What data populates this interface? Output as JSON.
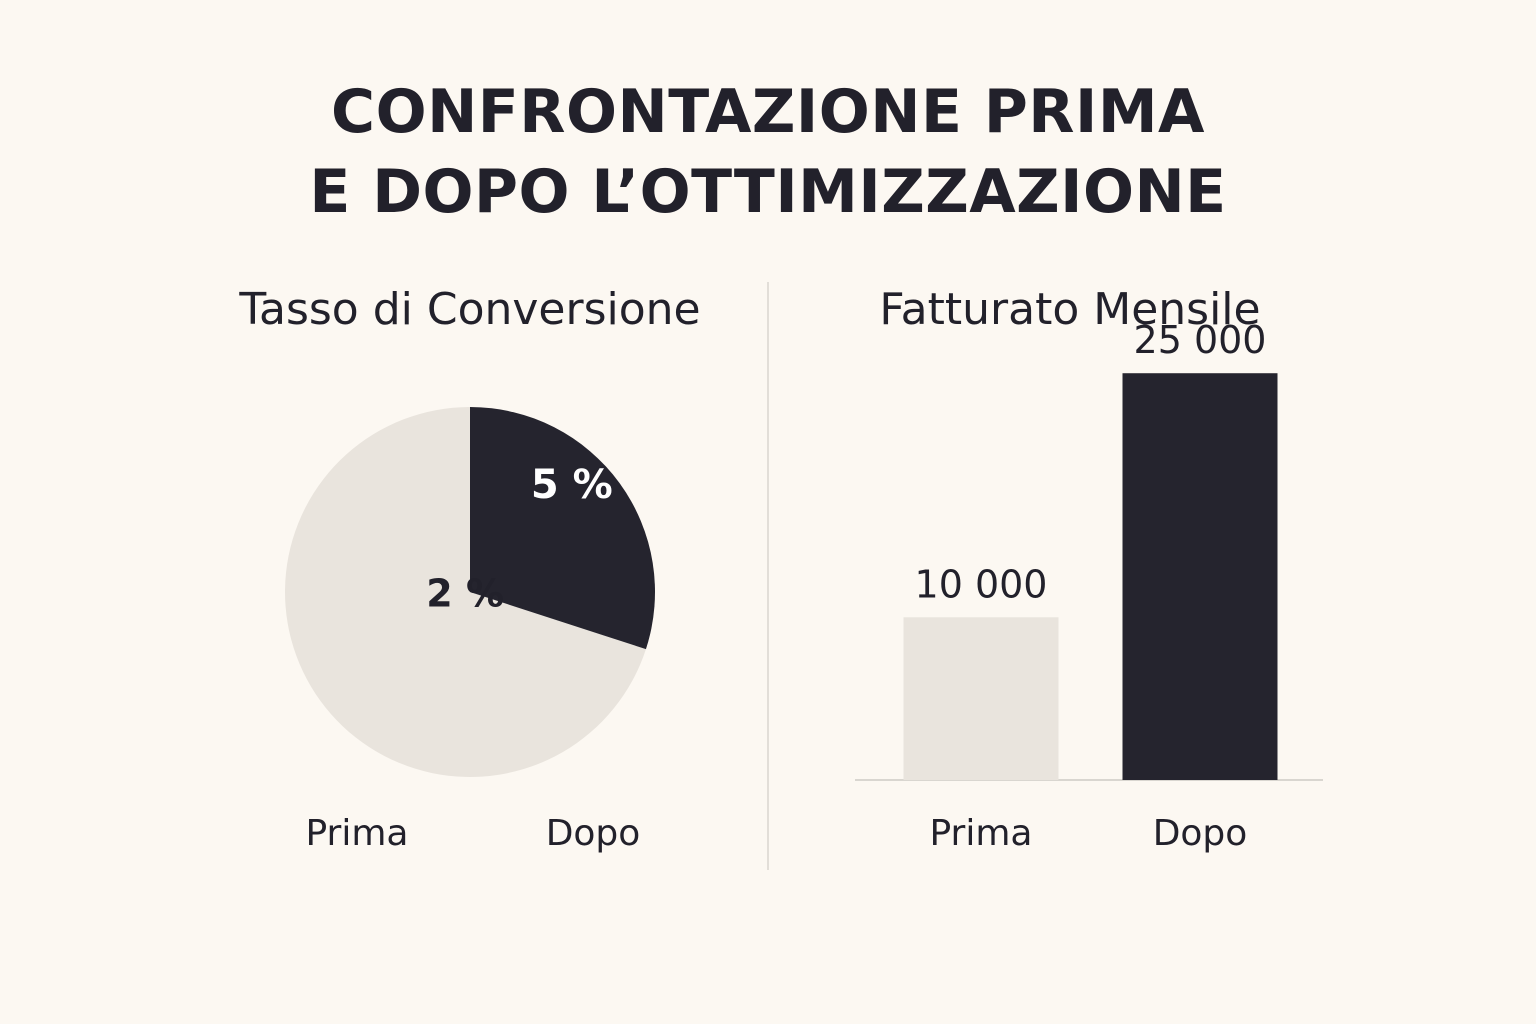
{
  "title_lines": [
    "CONFRONTAZIONE PRIMA",
    "E DOPO L’OTTIMIZZAZIONE"
  ],
  "colors": {
    "light": "#e9e4dd",
    "dark": "#25242e",
    "axis": "#d9d6d0",
    "text": "#22212b",
    "white": "#ffffff"
  },
  "chart_data": [
    {
      "type": "pie",
      "title": "Tasso di Conversione",
      "slices": [
        {
          "name": "Dopo",
          "value": 5,
          "label": "5 %",
          "color": "#25242e"
        },
        {
          "name": "Prima",
          "value": 2,
          "label": "2 %",
          "color": "#e9e4dd"
        }
      ],
      "dark_fraction": 0.3,
      "legend": [
        "Prima",
        "Dopo"
      ]
    },
    {
      "type": "bar",
      "title": "Fatturato Mensile",
      "categories": [
        "Prima",
        "Dopo"
      ],
      "values": [
        10000,
        25000
      ],
      "value_labels": [
        "10 000",
        "25 000"
      ],
      "colors": [
        "#e9e4dd",
        "#25242e"
      ],
      "ylim": [
        0,
        29500
      ]
    }
  ]
}
